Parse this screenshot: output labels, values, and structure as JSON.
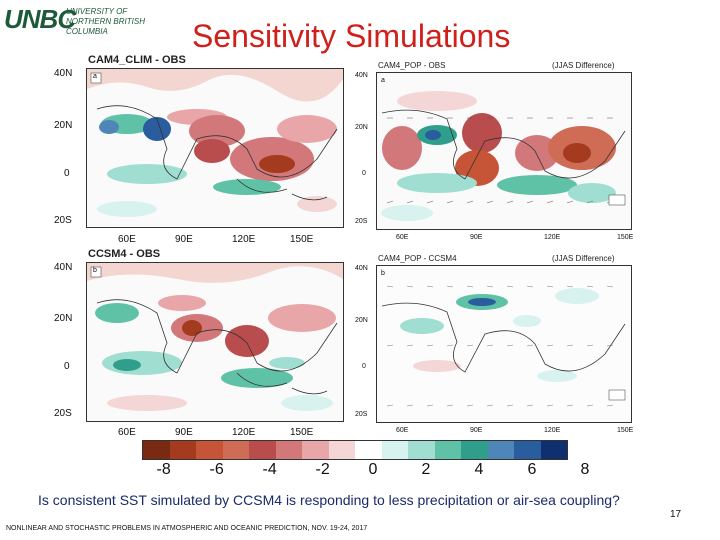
{
  "logo": {
    "mark": "UNBC",
    "line1": "UNIVERSITY OF",
    "line2": "NORTHERN BRITISH COLUMBIA"
  },
  "title": "Sensitivity Simulations",
  "panels": {
    "a": {
      "title": "CAM4_CLIM - OBS",
      "label": "a",
      "lat_ticks": [
        "40N",
        "20N",
        "0",
        "20S"
      ],
      "lon_ticks": [
        "60E",
        "90E",
        "120E",
        "150E"
      ]
    },
    "b": {
      "title": "CCSM4 - OBS",
      "label": "b",
      "lat_ticks": [
        "40N",
        "20N",
        "0",
        "20S"
      ],
      "lon_ticks": [
        "60E",
        "90E",
        "120E",
        "150E"
      ]
    },
    "c": {
      "title": "CAM4_POP - OBS",
      "note": "(JJAS Difference)",
      "label": "a",
      "lat_ticks": [
        "40N",
        "20N",
        "0",
        "20S"
      ],
      "lon_ticks": [
        "60E",
        "90E",
        "120E",
        "150E"
      ]
    },
    "d": {
      "title": "CAM4_POP - CCSM4",
      "note": "(JJAS Difference)",
      "label": "b",
      "lat_ticks": [
        "40N",
        "20N",
        "0",
        "20S"
      ],
      "lon_ticks": [
        "60E",
        "90E",
        "120E",
        "150E"
      ]
    }
  },
  "colorbar": {
    "colors": [
      "#7a2a12",
      "#a43a1e",
      "#c65436",
      "#cf6c56",
      "#b94c4c",
      "#d2777a",
      "#e8a6a8",
      "#f5d6d6",
      "#ffffff",
      "#d8f2ef",
      "#9fded1",
      "#5fc2a6",
      "#2f9f8c",
      "#4f86b8",
      "#2a5d9e",
      "#102f6e"
    ],
    "ticks": [
      "-8",
      "-6",
      "-4",
      "-2",
      "0",
      "2",
      "4",
      "6",
      "8"
    ]
  },
  "caption": "Is consistent SST simulated by CCSM4 is responding to less precipitation or air-sea coupling?",
  "page_number": "17",
  "footer": "NONLINEAR AND STOCHASTIC PROBLEMS IN ATMOSPHERIC AND OCEANIC PREDICTION, NOV. 19-24, 2017"
}
